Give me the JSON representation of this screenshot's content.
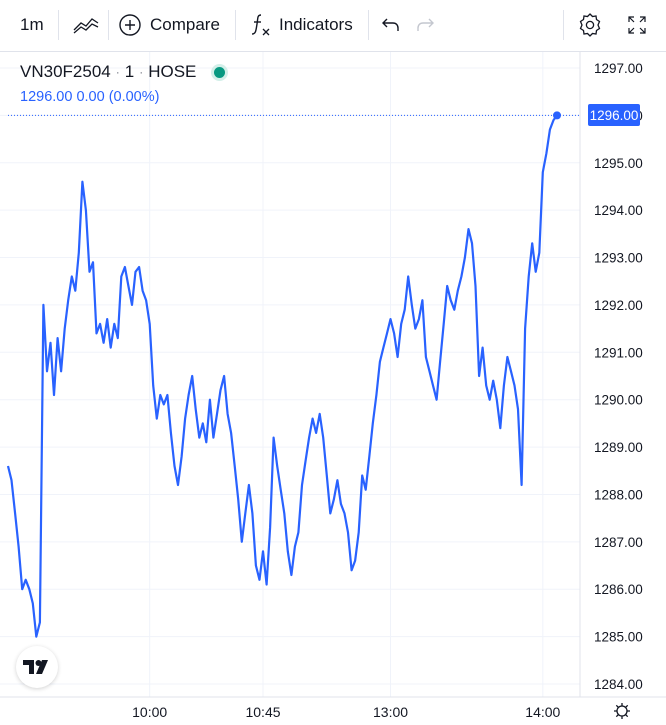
{
  "toolbar": {
    "interval": "1m",
    "compare_label": "Compare",
    "indicators_label": "Indicators",
    "icons": [
      "line-chart-icon",
      "plus-circle-icon",
      "function-icon",
      "undo-icon",
      "redo-icon",
      "gear-icon",
      "fullscreen-icon"
    ]
  },
  "legend": {
    "symbol": "VN30F2504",
    "interval": "1",
    "exchange": "HOSE",
    "separator": "·",
    "values": "1296.00  0.00 (0.00%)",
    "status_color": "#089981"
  },
  "price_badge": "1296.00",
  "colors": {
    "line": "#2962ff",
    "grid": "#f0f3fa",
    "axis_text": "#131722"
  },
  "chart_data": {
    "type": "line",
    "symbol": "VN30F2504",
    "last_price": 1296.0,
    "ylim": [
      1283.8,
      1297.4
    ],
    "y_ticks": [
      "1297.00",
      "1296.00",
      "1295.00",
      "1294.00",
      "1293.00",
      "1292.00",
      "1291.00",
      "1290.00",
      "1289.00",
      "1288.00",
      "1287.00",
      "1286.00",
      "1285.00",
      "1284.00"
    ],
    "y_tick_values": [
      1297,
      1296,
      1295,
      1294,
      1293,
      1292,
      1291,
      1290,
      1289,
      1288,
      1287,
      1286,
      1285,
      1284
    ],
    "x_ticks": [
      "10:00",
      "10:45",
      "13:00",
      "14:00"
    ],
    "x_tick_index": [
      40,
      72,
      108,
      151
    ],
    "series": [
      {
        "values": [
          1288.6,
          1288.3,
          1287.6,
          1286.9,
          1286.0,
          1286.2,
          1286.0,
          1285.7,
          1285.0,
          1285.3,
          1292.0,
          1290.6,
          1291.2,
          1290.1,
          1291.3,
          1290.6,
          1291.5,
          1292.1,
          1292.6,
          1292.3,
          1293.1,
          1294.6,
          1294.0,
          1292.7,
          1292.9,
          1291.4,
          1291.6,
          1291.2,
          1291.7,
          1291.1,
          1291.6,
          1291.3,
          1292.6,
          1292.8,
          1292.4,
          1292.0,
          1292.7,
          1292.8,
          1292.3,
          1292.1,
          1291.6,
          1290.3,
          1289.6,
          1290.1,
          1289.9,
          1290.1,
          1289.3,
          1288.6,
          1288.2,
          1288.8,
          1289.6,
          1290.1,
          1290.5,
          1289.8,
          1289.2,
          1289.5,
          1289.1,
          1290.0,
          1289.2,
          1289.7,
          1290.2,
          1290.5,
          1289.7,
          1289.3,
          1288.6,
          1287.9,
          1287.0,
          1287.6,
          1288.2,
          1287.6,
          1286.5,
          1286.2,
          1286.8,
          1286.1,
          1287.3,
          1289.2,
          1288.6,
          1288.1,
          1287.6,
          1286.8,
          1286.3,
          1286.9,
          1287.2,
          1288.2,
          1288.7,
          1289.2,
          1289.6,
          1289.3,
          1289.7,
          1289.2,
          1288.4,
          1287.6,
          1287.9,
          1288.3,
          1287.8,
          1287.6,
          1287.2,
          1286.4,
          1286.6,
          1287.2,
          1288.4,
          1288.1,
          1288.8,
          1289.5,
          1290.1,
          1290.8,
          1291.1,
          1291.4,
          1291.7,
          1291.4,
          1290.9,
          1291.6,
          1291.9,
          1292.6,
          1292.0,
          1291.5,
          1291.7,
          1292.1,
          1290.9,
          1290.6,
          1290.3,
          1290.0,
          1290.8,
          1291.6,
          1292.4,
          1292.1,
          1291.9,
          1292.3,
          1292.6,
          1293.0,
          1293.6,
          1293.3,
          1292.4,
          1290.5,
          1291.1,
          1290.3,
          1290.0,
          1290.4,
          1290.0,
          1289.4,
          1290.3,
          1290.9,
          1290.6,
          1290.3,
          1289.8,
          1288.2,
          1291.5,
          1292.6,
          1293.3,
          1292.7,
          1293.1,
          1294.8,
          1295.2,
          1295.7,
          1295.9,
          1296.0
        ]
      }
    ]
  }
}
